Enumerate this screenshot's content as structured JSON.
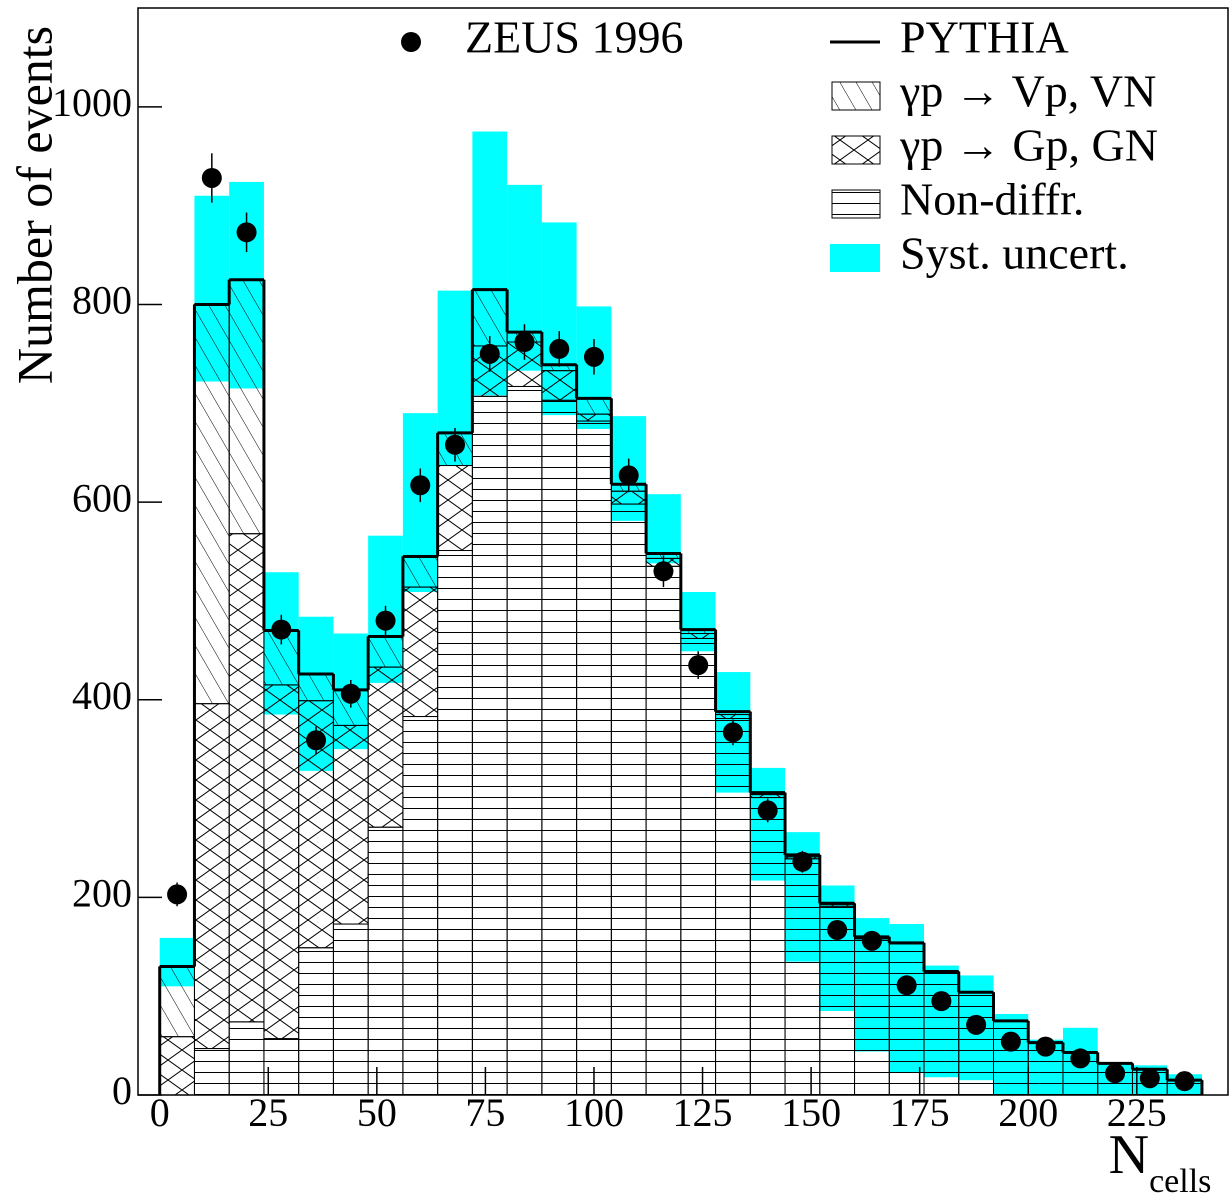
{
  "chart_data": {
    "type": "histogram",
    "bins": [
      0,
      8,
      16,
      24,
      32,
      40,
      48,
      56,
      64,
      72,
      80,
      88,
      96,
      104,
      112,
      120,
      128,
      136,
      144,
      152,
      160,
      168,
      176,
      184,
      192,
      200,
      208,
      216,
      224,
      232,
      240
    ],
    "xlim": [
      -5,
      246
    ],
    "ylim": [
      0,
      1100
    ],
    "xticks": [
      0,
      25,
      50,
      75,
      100,
      125,
      150,
      175,
      200,
      225
    ],
    "yticks": [
      0,
      200,
      400,
      600,
      800,
      1000
    ],
    "xlabel": "N",
    "xlabel_sub": "cells",
    "ylabel": "Number of events",
    "series": [
      {
        "name": "Non-diffr.",
        "pattern": "horizontal",
        "values": [
          0,
          47,
          74,
          57,
          149,
          173,
          271,
          383,
          551,
          707,
          717,
          703,
          682,
          598,
          535,
          462,
          381,
          301,
          239,
          191,
          158,
          153,
          125,
          104,
          75,
          53,
          43,
          32,
          26,
          15
        ]
      },
      {
        "name": "γp → Gp, GN",
        "pattern": "cross",
        "values": [
          59,
          349,
          494,
          358,
          250,
          201,
          162,
          131,
          86,
          51,
          45,
          30,
          7,
          13,
          8,
          5,
          4,
          3,
          2,
          2,
          1,
          1,
          0,
          0,
          0,
          0,
          0,
          0,
          0,
          0
        ]
      },
      {
        "name": "γp → Vp, VN",
        "pattern": "diagonal",
        "values": [
          71,
          404,
          257,
          55,
          27,
          36,
          31,
          31,
          33,
          57,
          10,
          6,
          16,
          7,
          5,
          4,
          3,
          2,
          2,
          1,
          1,
          0,
          0,
          0,
          0,
          0,
          0,
          0,
          0,
          0
        ]
      }
    ],
    "total_line": {
      "name": "PYTHIA",
      "color": "#000000"
    },
    "syst": {
      "name": "Syst. uncert.",
      "color": "#00ffff",
      "lower": [
        110,
        722,
        715,
        385,
        328,
        350,
        417,
        509,
        637,
        708,
        733,
        688,
        674,
        581,
        538,
        449,
        306,
        217,
        135,
        85,
        44,
        23,
        18,
        15,
        0,
        0,
        0,
        0,
        0,
        0
      ],
      "upper": [
        159,
        910,
        924,
        529,
        484,
        467,
        566,
        690,
        814,
        975,
        921,
        883,
        798,
        687,
        608,
        509,
        428,
        331,
        266,
        212,
        179,
        173,
        131,
        121,
        82,
        56,
        68,
        33,
        30,
        21
      ]
    },
    "data": {
      "name": "ZEUS 1996",
      "color": "#000000",
      "values": [
        203,
        928,
        873,
        471,
        359,
        406,
        480,
        617,
        658,
        750,
        762,
        755,
        747,
        627,
        530,
        435,
        367,
        288,
        236,
        167,
        156,
        111,
        95,
        71,
        54,
        49,
        37,
        22,
        17,
        14
      ],
      "errors": [
        12,
        25,
        20,
        15,
        14,
        14,
        15,
        17,
        17,
        18,
        18,
        18,
        18,
        17,
        16,
        14,
        13,
        12,
        11,
        9,
        9,
        8,
        7,
        6,
        5,
        5,
        4,
        3,
        3,
        3
      ]
    }
  }
}
